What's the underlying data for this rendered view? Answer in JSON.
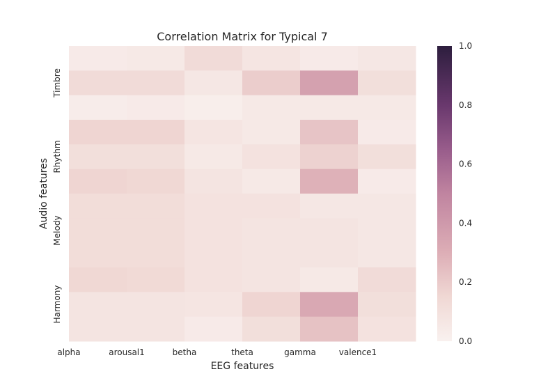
{
  "chart_data": {
    "type": "heatmap",
    "title": "Correlation Matrix for Typical 7",
    "xlabel": "EEG features",
    "ylabel": "Audio features",
    "x_tick_labels": [
      "alpha",
      "arousal1",
      "betha",
      "theta",
      "gamma",
      "valence1"
    ],
    "y_tick_labels": [
      "Timbre",
      "Rhythm",
      "Melody",
      "Harmony"
    ],
    "colorbar": {
      "range": [
        0.0,
        1.0
      ],
      "ticks": [
        "0.0",
        "0.2",
        "0.4",
        "0.6",
        "0.8",
        "1.0"
      ],
      "color_low": "#f9f1ef",
      "color_high": "#2d1e3e"
    },
    "rows": 12,
    "columns": 6,
    "values": [
      [
        0.04,
        0.05,
        0.13,
        0.07,
        0.04,
        0.06
      ],
      [
        0.13,
        0.13,
        0.06,
        0.19,
        0.36,
        0.11
      ],
      [
        0.03,
        0.04,
        0.02,
        0.05,
        0.05,
        0.05
      ],
      [
        0.16,
        0.16,
        0.07,
        0.05,
        0.22,
        0.04
      ],
      [
        0.11,
        0.11,
        0.05,
        0.09,
        0.17,
        0.11
      ],
      [
        0.16,
        0.15,
        0.08,
        0.05,
        0.29,
        0.04
      ],
      [
        0.12,
        0.12,
        0.09,
        0.09,
        0.06,
        0.06
      ],
      [
        0.12,
        0.12,
        0.09,
        0.08,
        0.08,
        0.06
      ],
      [
        0.12,
        0.12,
        0.09,
        0.08,
        0.08,
        0.06
      ],
      [
        0.15,
        0.14,
        0.09,
        0.08,
        0.05,
        0.13
      ],
      [
        0.08,
        0.08,
        0.07,
        0.16,
        0.33,
        0.11
      ],
      [
        0.08,
        0.08,
        0.04,
        0.11,
        0.23,
        0.09
      ]
    ]
  }
}
